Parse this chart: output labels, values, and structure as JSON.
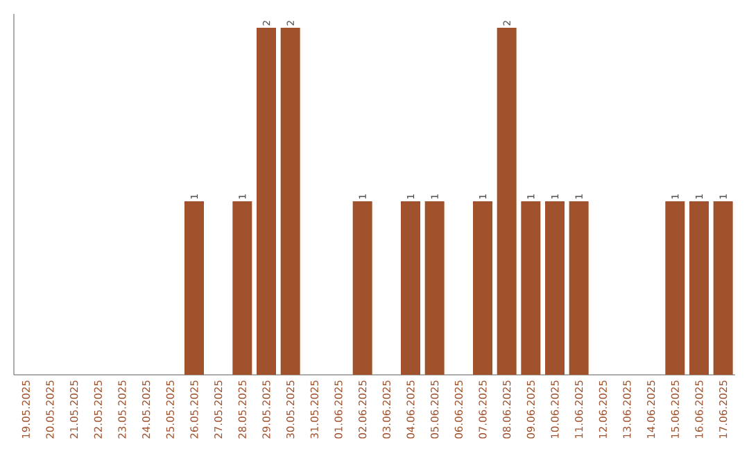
{
  "chart_data": {
    "type": "bar",
    "categories": [
      "19.05.2025",
      "20.05.2025",
      "21.05.2025",
      "22.05.2025",
      "23.05.2025",
      "24.05.2025",
      "25.05.2025",
      "26.05.2025",
      "27.05.2025",
      "28.05.2025",
      "29.05.2025",
      "30.05.2025",
      "31.05.2025",
      "01.06.2025",
      "02.06.2025",
      "03.06.2025",
      "04.06.2025",
      "05.06.2025",
      "06.06.2025",
      "07.06.2025",
      "08.06.2025",
      "09.06.2025",
      "10.06.2025",
      "11.06.2025",
      "12.06.2025",
      "13.06.2025",
      "14.06.2025",
      "15.06.2025",
      "16.06.2025",
      "17.06.2025"
    ],
    "values": [
      0,
      0,
      0,
      0,
      0,
      0,
      0,
      1,
      0,
      1,
      2,
      2,
      0,
      0,
      1,
      0,
      1,
      1,
      0,
      1,
      2,
      1,
      1,
      1,
      0,
      0,
      0,
      1,
      1,
      1
    ],
    "value_labels": [
      null,
      null,
      null,
      null,
      null,
      null,
      null,
      "1",
      null,
      "1",
      "2",
      "2",
      null,
      null,
      "1",
      null,
      "1",
      "1",
      null,
      "1",
      "2",
      "1",
      "1",
      "1",
      null,
      null,
      null,
      "1",
      "1",
      "1"
    ],
    "color": "#a0522d"
  }
}
